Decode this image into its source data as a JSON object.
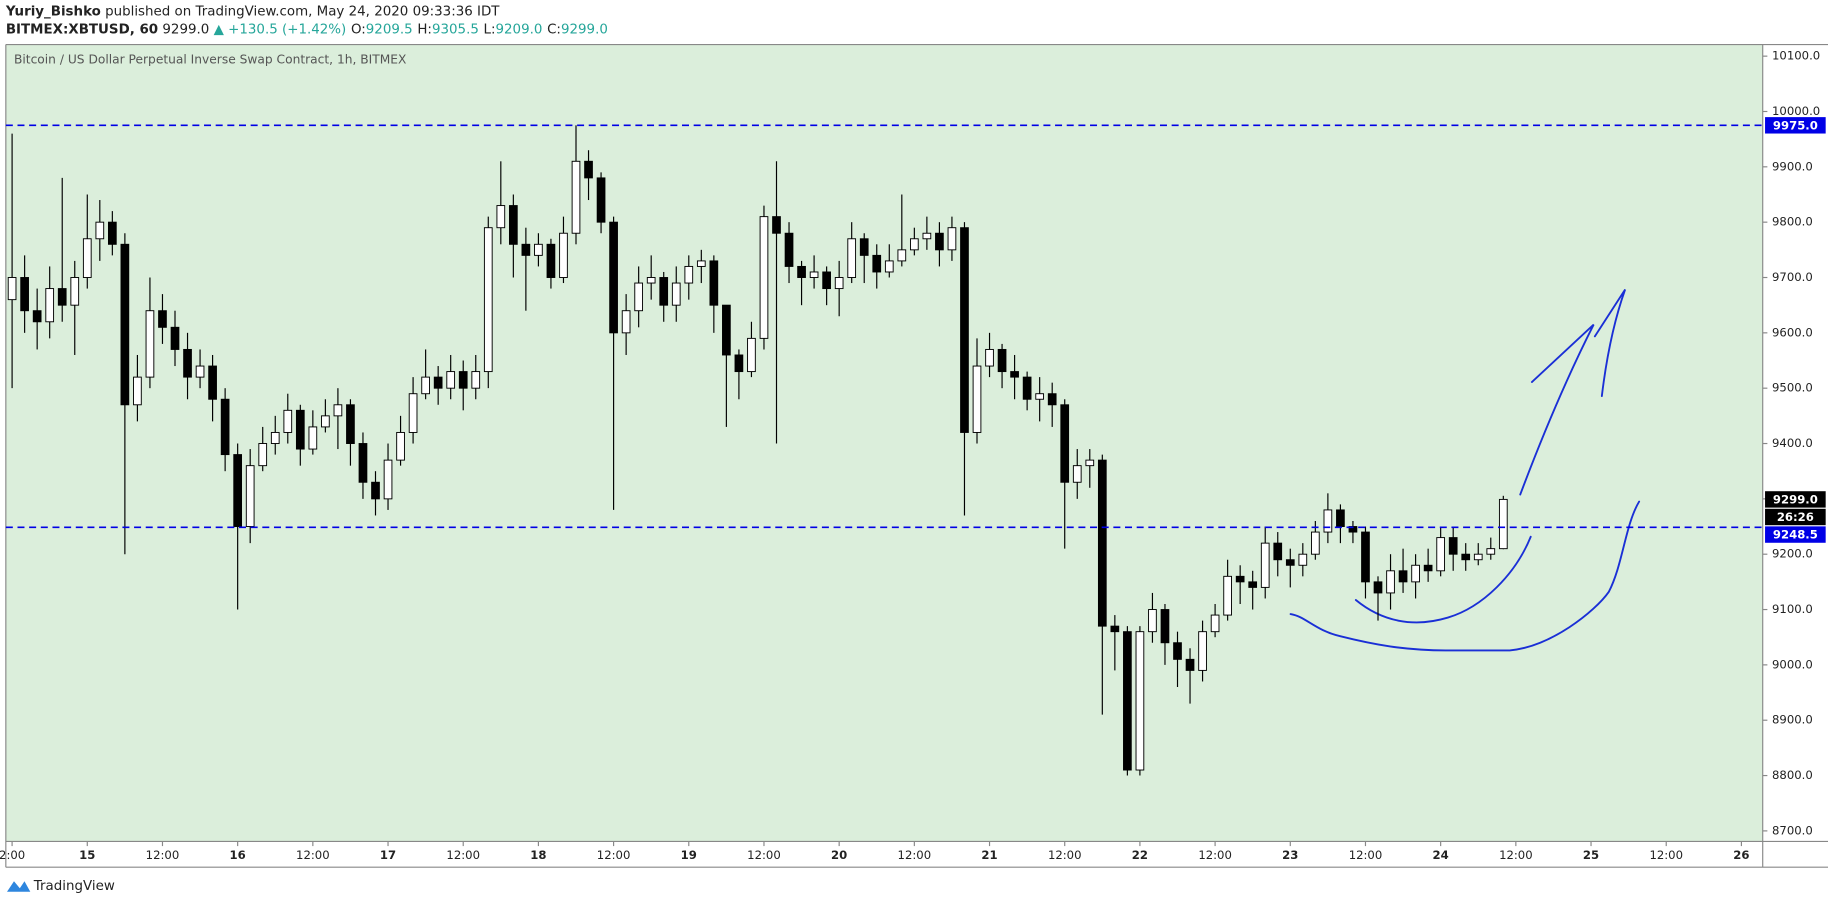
{
  "chart_data": {
    "type": "candlestick",
    "header": {
      "author": "Yuriy_Bishko",
      "published": "published on TradingView.com, May 24, 2020 09:33:36 IDT",
      "symbol": "BITMEX:XBTUSD, 60",
      "last": "9299.0",
      "change": "▲ +130.5 (+1.42%)",
      "ohlc": [
        {
          "label": "O:",
          "value": "9209.5"
        },
        {
          "label": "H:",
          "value": "9305.5"
        },
        {
          "label": "L:",
          "value": "9209.0"
        },
        {
          "label": "C:",
          "value": "9299.0"
        }
      ]
    },
    "title": "Bitcoin / US Dollar Perpetual Inverse Swap Contract, 1h, BITMEX",
    "footer": "TradingView",
    "up_color": "#ffffff",
    "down_color": "#000000",
    "background": "#dbeedb",
    "grid": false,
    "x": [
      0,
      2,
      4,
      6,
      8,
      10,
      12,
      14,
      16,
      18,
      20,
      22,
      24,
      26,
      28,
      30,
      32,
      34,
      36,
      38,
      40,
      42,
      44,
      46,
      48,
      50,
      52,
      54,
      56,
      58,
      60,
      62,
      64,
      66,
      68,
      70,
      72,
      74,
      76,
      78,
      80,
      82,
      84,
      86,
      88,
      90,
      92,
      94,
      96,
      98,
      100,
      102,
      104,
      106,
      108,
      110,
      112,
      114,
      116,
      118,
      120,
      122,
      124,
      126,
      128,
      130,
      132,
      134,
      136,
      138,
      140,
      142,
      144,
      146,
      148,
      150,
      152,
      154,
      156,
      158,
      160,
      162,
      164,
      166,
      168,
      170,
      172,
      174,
      176,
      178,
      180,
      182,
      184,
      186,
      188,
      190,
      192,
      194,
      196,
      198,
      200,
      202,
      204,
      206,
      208,
      210,
      212,
      214,
      216,
      218,
      220,
      222,
      224,
      226,
      228,
      230,
      232,
      234,
      236,
      238
    ],
    "open": [
      9660,
      9700,
      9640,
      9620,
      9680,
      9650,
      9700,
      9770,
      9800,
      9760,
      9470,
      9520,
      9640,
      9610,
      9570,
      9520,
      9540,
      9480,
      9380,
      9250,
      9360,
      9400,
      9420,
      9460,
      9390,
      9430,
      9450,
      9470,
      9400,
      9330,
      9300,
      9370,
      9420,
      9490,
      9520,
      9500,
      9530,
      9500,
      9530,
      9790,
      9830,
      9760,
      9740,
      9760,
      9700,
      9780,
      9910,
      9880,
      9800,
      9600,
      9640,
      9690,
      9700,
      9650,
      9690,
      9720,
      9730,
      9650,
      9560,
      9530,
      9590,
      9810,
      9780,
      9720,
      9700,
      9710,
      9680,
      9700,
      9770,
      9740,
      9710,
      9730,
      9750,
      9770,
      9780,
      9750,
      9790,
      9420,
      9540,
      9570,
      9530,
      9520,
      9480,
      9490,
      9470,
      9330,
      9360,
      9370,
      9070,
      9060,
      8810,
      9060,
      9100,
      9040,
      9010,
      8990,
      9060,
      9090,
      9160,
      9150,
      9140,
      9220,
      9190,
      9180,
      9200,
      9240,
      9280,
      9250,
      9240,
      9150,
      9130,
      9170,
      9150,
      9180,
      9170,
      9230,
      9200,
      9190,
      9200,
      9210
    ],
    "high": [
      9960,
      9740,
      9680,
      9720,
      9880,
      9730,
      9850,
      9840,
      9820,
      9780,
      9560,
      9700,
      9670,
      9640,
      9600,
      9570,
      9560,
      9500,
      9400,
      9390,
      9430,
      9450,
      9490,
      9470,
      9460,
      9480,
      9500,
      9480,
      9420,
      9350,
      9400,
      9450,
      9520,
      9570,
      9540,
      9560,
      9550,
      9560,
      9810,
      9910,
      9850,
      9790,
      9780,
      9770,
      9810,
      9975,
      9930,
      9890,
      9810,
      9670,
      9720,
      9740,
      9710,
      9720,
      9740,
      9750,
      9740,
      9640,
      9570,
      9620,
      9830,
      9910,
      9800,
      9730,
      9740,
      9720,
      9730,
      9800,
      9780,
      9760,
      9760,
      9850,
      9790,
      9810,
      9800,
      9810,
      9800,
      9590,
      9600,
      9580,
      9560,
      9530,
      9520,
      9510,
      9480,
      9390,
      9390,
      9380,
      9090,
      9070,
      9070,
      9130,
      9110,
      9060,
      9030,
      9080,
      9110,
      9190,
      9180,
      9170,
      9250,
      9240,
      9210,
      9220,
      9260,
      9310,
      9290,
      9260,
      9250,
      9160,
      9200,
      9210,
      9200,
      9210,
      9250,
      9250,
      9220,
      9220,
      9230,
      9305.5
    ],
    "low": [
      9500,
      9600,
      9570,
      9590,
      9620,
      9560,
      9680,
      9730,
      9740,
      9200,
      9440,
      9500,
      9580,
      9540,
      9480,
      9500,
      9440,
      9350,
      9100,
      9220,
      9350,
      9380,
      9400,
      9360,
      9380,
      9420,
      9390,
      9360,
      9300,
      9270,
      9280,
      9360,
      9400,
      9480,
      9470,
      9480,
      9460,
      9480,
      9500,
      9760,
      9700,
      9640,
      9720,
      9680,
      9690,
      9760,
      9840,
      9780,
      9280,
      9560,
      9610,
      9660,
      9620,
      9620,
      9660,
      9690,
      9600,
      9430,
      9480,
      9520,
      9570,
      9400,
      9690,
      9650,
      9680,
      9650,
      9630,
      9690,
      9690,
      9680,
      9700,
      9720,
      9740,
      9750,
      9720,
      9730,
      9270,
      9400,
      9520,
      9500,
      9480,
      9460,
      9440,
      9430,
      9210,
      9300,
      9320,
      8910,
      8990,
      8800,
      8800,
      9040,
      9000,
      8960,
      8930,
      8970,
      9050,
      9080,
      9110,
      9100,
      9120,
      9160,
      9140,
      9160,
      9190,
      9220,
      9220,
      9220,
      9120,
      9080,
      9100,
      9130,
      9120,
      9150,
      9160,
      9170,
      9170,
      9180,
      9190,
      9209
    ],
    "close": [
      9700,
      9640,
      9620,
      9680,
      9650,
      9700,
      9770,
      9800,
      9760,
      9470,
      9520,
      9640,
      9610,
      9570,
      9520,
      9540,
      9480,
      9380,
      9250,
      9360,
      9400,
      9420,
      9460,
      9390,
      9430,
      9450,
      9470,
      9400,
      9330,
      9300,
      9370,
      9420,
      9490,
      9520,
      9500,
      9530,
      9500,
      9530,
      9790,
      9830,
      9760,
      9740,
      9760,
      9700,
      9780,
      9910,
      9880,
      9800,
      9600,
      9640,
      9690,
      9700,
      9650,
      9690,
      9720,
      9730,
      9650,
      9560,
      9530,
      9590,
      9810,
      9780,
      9720,
      9700,
      9710,
      9680,
      9700,
      9770,
      9740,
      9710,
      9730,
      9750,
      9770,
      9780,
      9750,
      9790,
      9420,
      9540,
      9570,
      9530,
      9520,
      9480,
      9490,
      9470,
      9330,
      9360,
      9370,
      9070,
      9060,
      8810,
      9060,
      9100,
      9040,
      9010,
      8990,
      9060,
      9090,
      9160,
      9150,
      9140,
      9220,
      9190,
      9180,
      9200,
      9240,
      9280,
      9250,
      9240,
      9150,
      9130,
      9170,
      9150,
      9180,
      9170,
      9230,
      9200,
      9190,
      9200,
      9210,
      9299
    ],
    "xlim": [
      -1,
      279.4
    ],
    "xticks": [
      {
        "value": 0,
        "label": "2:00"
      },
      {
        "value": 12,
        "label": "15"
      },
      {
        "value": 24,
        "label": "12:00"
      },
      {
        "value": 36,
        "label": "16"
      },
      {
        "value": 48,
        "label": "12:00"
      },
      {
        "value": 60,
        "label": "17"
      },
      {
        "value": 72,
        "label": "12:00"
      },
      {
        "value": 84,
        "label": "18"
      },
      {
        "value": 96,
        "label": "12:00"
      },
      {
        "value": 108,
        "label": "19"
      },
      {
        "value": 120,
        "label": "12:00"
      },
      {
        "value": 132,
        "label": "20"
      },
      {
        "value": 144,
        "label": "12:00"
      },
      {
        "value": 156,
        "label": "21"
      },
      {
        "value": 168,
        "label": "12:00"
      },
      {
        "value": 180,
        "label": "22"
      },
      {
        "value": 192,
        "label": "12:00"
      },
      {
        "value": 204,
        "label": "23"
      },
      {
        "value": 216,
        "label": "12:00"
      },
      {
        "value": 228,
        "label": "24"
      },
      {
        "value": 240,
        "label": "12:00"
      },
      {
        "value": 252,
        "label": "25"
      },
      {
        "value": 264,
        "label": "12:00"
      },
      {
        "value": 276,
        "label": "26"
      }
    ],
    "ylim": [
      8681,
      10121
    ],
    "yticks": [
      {
        "value": 8700,
        "label": "8700.0"
      },
      {
        "value": 8800,
        "label": "8800.0"
      },
      {
        "value": 8900,
        "label": "8900.0"
      },
      {
        "value": 9000,
        "label": "9000.0"
      },
      {
        "value": 9100,
        "label": "9100.0"
      },
      {
        "value": 9200,
        "label": "9200.0"
      },
      {
        "value": 9300,
        "label": "9300.0"
      },
      {
        "value": 9400,
        "label": "9400.0"
      },
      {
        "value": 9500,
        "label": "9500.0"
      },
      {
        "value": 9600,
        "label": "9600.0"
      },
      {
        "value": 9700,
        "label": "9700.0"
      },
      {
        "value": 9800,
        "label": "9800.0"
      },
      {
        "value": 9900,
        "label": "9900.0"
      },
      {
        "value": 10000,
        "label": "10000.0"
      },
      {
        "value": 10100,
        "label": "10100.0"
      }
    ],
    "hline_color": "#0000e6",
    "hlines": [
      {
        "value": 9975,
        "label": "9975.0"
      },
      {
        "value": 9248.5,
        "label": "9248.5"
      }
    ],
    "last_price": {
      "value": 9299,
      "label": "9299.0"
    },
    "countdown": "26:26"
  }
}
